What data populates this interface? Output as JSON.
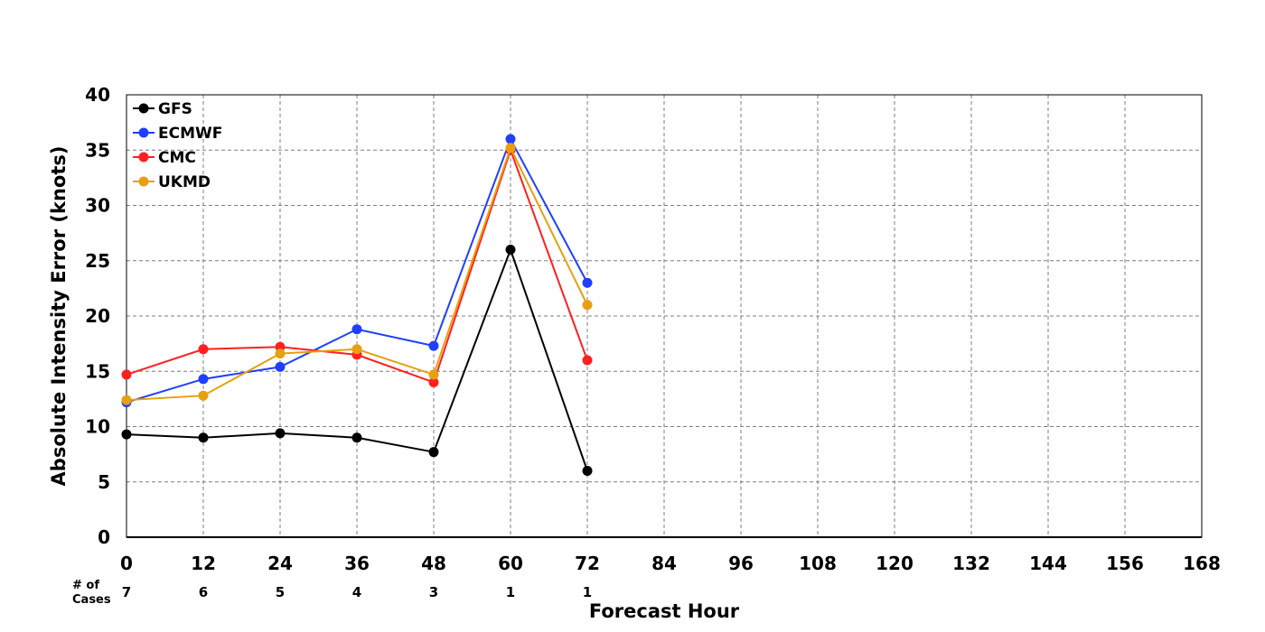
{
  "chart_data": {
    "type": "line",
    "xlabel": "Forecast Hour",
    "ylabel": "Absolute Intensity Error (knots)",
    "xlim": [
      0,
      168
    ],
    "ylim": [
      0,
      40
    ],
    "x_ticks": [
      0,
      12,
      24,
      36,
      48,
      60,
      72,
      84,
      96,
      108,
      120,
      132,
      144,
      156,
      168
    ],
    "y_ticks": [
      0,
      5,
      10,
      15,
      20,
      25,
      30,
      35,
      40
    ],
    "grid": true,
    "legend_position": "top-left",
    "x": [
      0,
      12,
      24,
      36,
      48,
      60,
      72
    ],
    "series": [
      {
        "name": "GFS",
        "color": "#000000",
        "values": [
          9.3,
          9.0,
          9.4,
          9.0,
          7.7,
          26.0,
          6.0
        ]
      },
      {
        "name": "ECMWF",
        "color": "#1f3fff",
        "values": [
          12.2,
          14.3,
          15.4,
          18.8,
          17.3,
          36.0,
          23.0
        ]
      },
      {
        "name": "CMC",
        "color": "#ff2020",
        "values": [
          14.7,
          17.0,
          17.2,
          16.5,
          14.0,
          35.0,
          16.0
        ]
      },
      {
        "name": "UKMD",
        "color": "#e6a010",
        "values": [
          12.4,
          12.8,
          16.6,
          17.0,
          14.7,
          35.2,
          21.0
        ]
      }
    ],
    "cases": {
      "title": "# of\nCases",
      "x": [
        0,
        12,
        24,
        36,
        48,
        60,
        72
      ],
      "values": [
        7,
        6,
        5,
        4,
        3,
        1,
        1
      ]
    }
  }
}
